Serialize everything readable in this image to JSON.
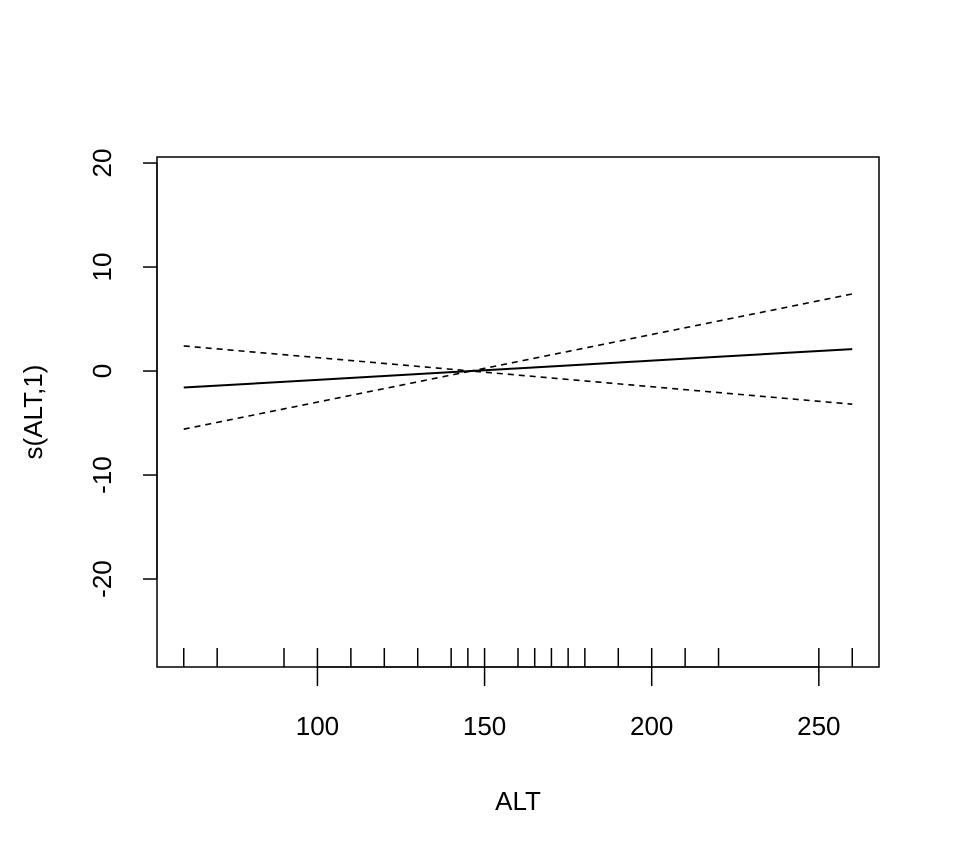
{
  "chart_data": {
    "type": "line",
    "x_label": "ALT",
    "y_label": "s(ALT,1)",
    "x": [
      60,
      80,
      100,
      120,
      140,
      146,
      160,
      180,
      200,
      220,
      240,
      260
    ],
    "series": [
      {
        "name": "fit",
        "color": "#000000",
        "dash": false,
        "values": [
          -1.59,
          -1.22,
          -0.85,
          -0.48,
          -0.11,
          0,
          0.26,
          0.63,
          1.0,
          1.37,
          1.74,
          2.11
        ]
      },
      {
        "name": "upper",
        "color": "#000000",
        "dash": true,
        "values": [
          2.41,
          1.85,
          1.29,
          0.73,
          0.17,
          0,
          0.91,
          2.21,
          3.51,
          4.81,
          6.11,
          7.41
        ]
      },
      {
        "name": "lower",
        "color": "#000000",
        "dash": true,
        "values": [
          -5.59,
          -4.29,
          -2.99,
          -1.69,
          -0.39,
          0,
          -0.39,
          -0.95,
          -1.51,
          -2.07,
          -2.63,
          -3.19
        ]
      }
    ],
    "rug": [
      60,
      70,
      90,
      100,
      110,
      120,
      130,
      140,
      145,
      150,
      160,
      165,
      170,
      175,
      180,
      190,
      200,
      210,
      220,
      250,
      260
    ],
    "xlim": [
      52,
      268
    ],
    "xticks": [
      100,
      150,
      200,
      250
    ],
    "ylim": [
      -28.46,
      20.58
    ],
    "yticks": [
      -20,
      -10,
      0,
      10,
      20
    ]
  }
}
